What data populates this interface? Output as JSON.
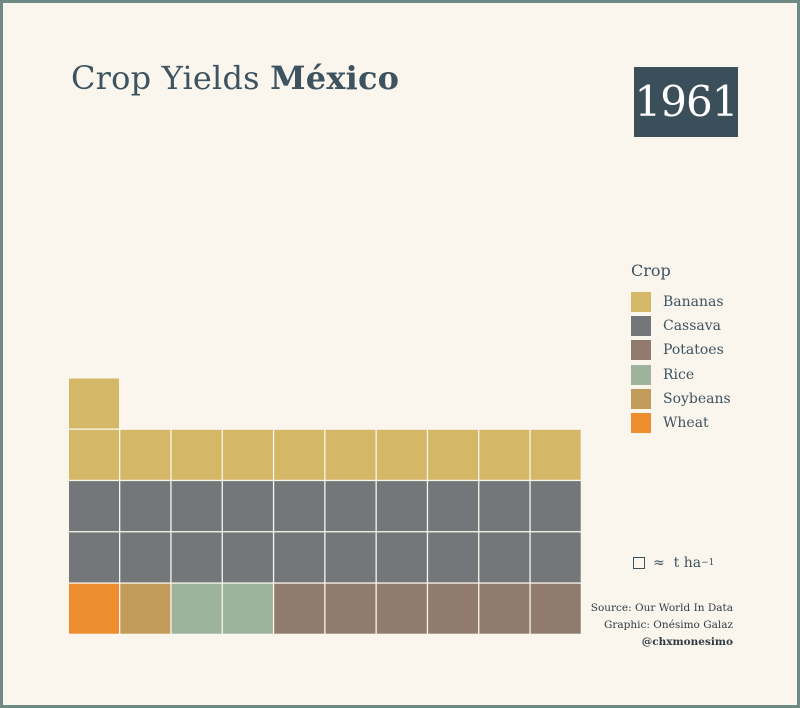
{
  "title": {
    "prefix": "Crop Yields",
    "country": "México"
  },
  "year": "1961",
  "legend": {
    "title": "Crop",
    "items": [
      {
        "label": "Bananas",
        "color": "#d4b867"
      },
      {
        "label": "Cassava",
        "color": "#737779"
      },
      {
        "label": "Potatoes",
        "color": "#917a6e"
      },
      {
        "label": "Rice",
        "color": "#9db39b"
      },
      {
        "label": "Soybeans",
        "color": "#c29b5a"
      },
      {
        "label": "Wheat",
        "color": "#ee8d2d"
      }
    ]
  },
  "unit_note": {
    "approx": "≈",
    "unit": "t ha",
    "exponent": "−1"
  },
  "credits": {
    "source": "Source: Our World In Data",
    "graphic": "Graphic: Onésimo Galaz",
    "handle": "@chxmonesimo"
  },
  "chart_data": {
    "type": "waffle",
    "unit": "1 square ≈ 1 t ha⁻¹",
    "columns": 10,
    "order": "bottom-up, left-to-right",
    "categories": [
      "Wheat",
      "Soybeans",
      "Rice",
      "Potatoes",
      "Cassava",
      "Bananas"
    ],
    "values": [
      1,
      1,
      2,
      6,
      20,
      11
    ],
    "colors": [
      "#ee8d2d",
      "#c29b5a",
      "#9db39b",
      "#917a6e",
      "#737779",
      "#d4b867"
    ]
  }
}
